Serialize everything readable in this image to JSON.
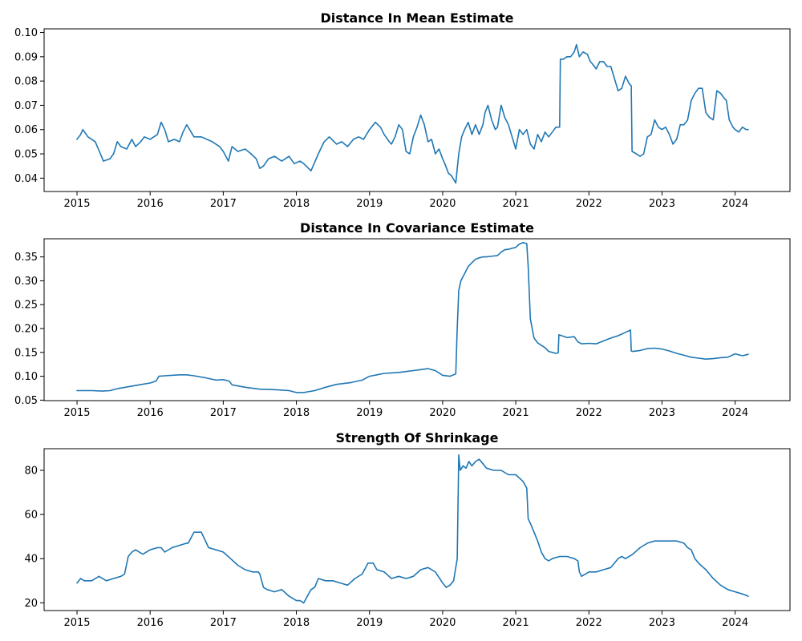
{
  "figure": {
    "background": "#ffffff"
  },
  "chart_data": [
    {
      "type": "line",
      "title": "Distance In Mean Estimate",
      "xlabel": "",
      "ylabel": "",
      "xlim": [
        2014.55,
        2024.75
      ],
      "ylim": [
        0.0345,
        0.1015
      ],
      "x_ticks": [
        2015,
        2016,
        2017,
        2018,
        2019,
        2020,
        2021,
        2022,
        2023,
        2024
      ],
      "x_tick_labels": [
        "2015",
        "2016",
        "2017",
        "2018",
        "2019",
        "2020",
        "2021",
        "2022",
        "2023",
        "2024"
      ],
      "y_ticks": [
        0.04,
        0.05,
        0.06,
        0.07,
        0.08,
        0.09,
        0.1
      ],
      "y_tick_labels": [
        "0.04",
        "0.05",
        "0.06",
        "0.07",
        "0.08",
        "0.09",
        "0.10"
      ],
      "grid": false,
      "series": [
        {
          "color": "#1f77b4",
          "x": [
            2015.0,
            2015.05,
            2015.08,
            2015.15,
            2015.25,
            2015.32,
            2015.36,
            2015.45,
            2015.5,
            2015.55,
            2015.6,
            2015.68,
            2015.75,
            2015.8,
            2015.87,
            2015.92,
            2016.0,
            2016.05,
            2016.1,
            2016.15,
            2016.2,
            2016.25,
            2016.33,
            2016.4,
            2016.45,
            2016.5,
            2016.6,
            2016.7,
            2016.85,
            2016.95,
            2017.0,
            2017.07,
            2017.12,
            2017.2,
            2017.3,
            2017.38,
            2017.45,
            2017.5,
            2017.55,
            2017.62,
            2017.7,
            2017.8,
            2017.9,
            2017.97,
            2018.05,
            2018.1,
            2018.2,
            2018.3,
            2018.38,
            2018.45,
            2018.55,
            2018.62,
            2018.7,
            2018.78,
            2018.85,
            2018.92,
            2019.0,
            2019.08,
            2019.15,
            2019.2,
            2019.27,
            2019.3,
            2019.35,
            2019.4,
            2019.45,
            2019.5,
            2019.55,
            2019.6,
            2019.65,
            2019.7,
            2019.75,
            2019.8,
            2019.85,
            2019.9,
            2019.95,
            2020.0,
            2020.03,
            2020.08,
            2020.12,
            2020.16,
            2020.18,
            2020.22,
            2020.26,
            2020.3,
            2020.35,
            2020.4,
            2020.45,
            2020.5,
            2020.55,
            2020.58,
            2020.62,
            2020.67,
            2020.72,
            2020.75,
            2020.8,
            2020.85,
            2020.9,
            2020.95,
            2021.0,
            2021.05,
            2021.1,
            2021.15,
            2021.2,
            2021.25,
            2021.3,
            2021.35,
            2021.4,
            2021.45,
            2021.5,
            2021.55,
            2021.6,
            2021.61,
            2021.65,
            2021.7,
            2021.75,
            2021.8,
            2021.83,
            2021.87,
            2021.92,
            2021.98,
            2022.02,
            2022.05,
            2022.1,
            2022.15,
            2022.2,
            2022.25,
            2022.3,
            2022.35,
            2022.4,
            2022.45,
            2022.5,
            2022.55,
            2022.58,
            2022.59,
            2022.65,
            2022.7,
            2022.75,
            2022.8,
            2022.85,
            2022.9,
            2022.95,
            2023.0,
            2023.05,
            2023.1,
            2023.15,
            2023.2,
            2023.25,
            2023.3,
            2023.35,
            2023.4,
            2023.45,
            2023.5,
            2023.55,
            2023.6,
            2023.65,
            2023.7,
            2023.75,
            2023.8,
            2023.85,
            2023.88,
            2023.92,
            2023.97,
            2024.0,
            2024.05,
            2024.1,
            2024.15,
            2024.18
          ],
          "y": [
            0.056,
            0.058,
            0.06,
            0.057,
            0.055,
            0.05,
            0.047,
            0.048,
            0.05,
            0.055,
            0.053,
            0.052,
            0.056,
            0.053,
            0.055,
            0.057,
            0.056,
            0.057,
            0.058,
            0.063,
            0.06,
            0.055,
            0.056,
            0.055,
            0.059,
            0.062,
            0.057,
            0.057,
            0.055,
            0.053,
            0.051,
            0.047,
            0.053,
            0.051,
            0.052,
            0.05,
            0.048,
            0.044,
            0.045,
            0.048,
            0.049,
            0.047,
            0.049,
            0.046,
            0.047,
            0.046,
            0.043,
            0.05,
            0.055,
            0.057,
            0.054,
            0.055,
            0.053,
            0.056,
            0.057,
            0.056,
            0.06,
            0.063,
            0.061,
            0.058,
            0.055,
            0.054,
            0.057,
            0.062,
            0.06,
            0.051,
            0.05,
            0.057,
            0.061,
            0.066,
            0.062,
            0.055,
            0.056,
            0.05,
            0.052,
            0.048,
            0.046,
            0.042,
            0.041,
            0.039,
            0.038,
            0.05,
            0.057,
            0.06,
            0.063,
            0.058,
            0.062,
            0.058,
            0.062,
            0.067,
            0.07,
            0.064,
            0.06,
            0.061,
            0.07,
            0.065,
            0.062,
            0.057,
            0.052,
            0.06,
            0.058,
            0.06,
            0.054,
            0.052,
            0.058,
            0.055,
            0.059,
            0.057,
            0.059,
            0.061,
            0.061,
            0.089,
            0.089,
            0.09,
            0.09,
            0.092,
            0.095,
            0.09,
            0.092,
            0.091,
            0.088,
            0.087,
            0.085,
            0.088,
            0.088,
            0.086,
            0.086,
            0.081,
            0.076,
            0.077,
            0.082,
            0.079,
            0.078,
            0.051,
            0.05,
            0.049,
            0.05,
            0.057,
            0.058,
            0.064,
            0.061,
            0.06,
            0.061,
            0.058,
            0.054,
            0.056,
            0.062,
            0.062,
            0.064,
            0.072,
            0.075,
            0.077,
            0.077,
            0.067,
            0.065,
            0.064,
            0.076,
            0.075,
            0.073,
            0.072,
            0.064,
            0.061,
            0.06,
            0.059,
            0.061,
            0.06,
            0.06
          ]
        }
      ]
    },
    {
      "type": "line",
      "title": "Distance In Covariance Estimate",
      "xlabel": "",
      "ylabel": "",
      "xlim": [
        2014.55,
        2024.75
      ],
      "ylim": [
        0.049,
        0.388
      ],
      "x_ticks": [
        2015,
        2016,
        2017,
        2018,
        2019,
        2020,
        2021,
        2022,
        2023,
        2024
      ],
      "x_tick_labels": [
        "2015",
        "2016",
        "2017",
        "2018",
        "2019",
        "2020",
        "2021",
        "2022",
        "2023",
        "2024"
      ],
      "y_ticks": [
        0.05,
        0.1,
        0.15,
        0.2,
        0.25,
        0.3,
        0.35
      ],
      "y_tick_labels": [
        "0.05",
        "0.10",
        "0.15",
        "0.20",
        "0.25",
        "0.30",
        "0.35"
      ],
      "grid": false,
      "series": [
        {
          "color": "#1f77b4",
          "x": [
            2015.0,
            2015.2,
            2015.35,
            2015.45,
            2015.55,
            2015.7,
            2015.85,
            2016.0,
            2016.08,
            2016.12,
            2016.2,
            2016.4,
            2016.5,
            2016.6,
            2016.75,
            2016.9,
            2017.0,
            2017.08,
            2017.12,
            2017.3,
            2017.5,
            2017.7,
            2017.9,
            2018.0,
            2018.1,
            2018.25,
            2018.4,
            2018.55,
            2018.75,
            2018.9,
            2019.0,
            2019.1,
            2019.2,
            2019.3,
            2019.4,
            2019.5,
            2019.6,
            2019.7,
            2019.8,
            2019.9,
            2020.0,
            2020.1,
            2020.18,
            2020.2,
            2020.22,
            2020.25,
            2020.3,
            2020.35,
            2020.4,
            2020.45,
            2020.5,
            2020.55,
            2020.6,
            2020.65,
            2020.7,
            2020.75,
            2020.8,
            2020.85,
            2020.9,
            2021.0,
            2021.05,
            2021.1,
            2021.15,
            2021.17,
            2021.2,
            2021.25,
            2021.3,
            2021.35,
            2021.4,
            2021.45,
            2021.5,
            2021.55,
            2021.58,
            2021.59,
            2021.7,
            2021.8,
            2021.85,
            2021.9,
            2022.0,
            2022.1,
            2022.2,
            2022.3,
            2022.4,
            2022.5,
            2022.57,
            2022.58,
            2022.6,
            2022.7,
            2022.8,
            2022.9,
            2023.0,
            2023.1,
            2023.2,
            2023.3,
            2023.4,
            2023.5,
            2023.6,
            2023.7,
            2023.8,
            2023.9,
            2024.0,
            2024.1,
            2024.18
          ],
          "y": [
            0.07,
            0.07,
            0.069,
            0.07,
            0.074,
            0.078,
            0.082,
            0.086,
            0.09,
            0.1,
            0.101,
            0.103,
            0.103,
            0.101,
            0.097,
            0.092,
            0.093,
            0.09,
            0.082,
            0.077,
            0.073,
            0.072,
            0.07,
            0.066,
            0.066,
            0.07,
            0.077,
            0.083,
            0.087,
            0.092,
            0.1,
            0.103,
            0.106,
            0.107,
            0.108,
            0.11,
            0.112,
            0.114,
            0.116,
            0.112,
            0.102,
            0.1,
            0.105,
            0.2,
            0.28,
            0.3,
            0.315,
            0.33,
            0.338,
            0.345,
            0.348,
            0.35,
            0.35,
            0.351,
            0.352,
            0.353,
            0.36,
            0.365,
            0.366,
            0.37,
            0.377,
            0.38,
            0.378,
            0.33,
            0.22,
            0.18,
            0.17,
            0.165,
            0.16,
            0.152,
            0.15,
            0.148,
            0.149,
            0.187,
            0.181,
            0.183,
            0.172,
            0.168,
            0.169,
            0.168,
            0.174,
            0.18,
            0.185,
            0.192,
            0.197,
            0.153,
            0.152,
            0.154,
            0.158,
            0.159,
            0.157,
            0.153,
            0.148,
            0.144,
            0.14,
            0.138,
            0.136,
            0.137,
            0.139,
            0.14,
            0.147,
            0.143,
            0.146
          ]
        }
      ]
    },
    {
      "type": "line",
      "title": "Strength Of Shrinkage",
      "xlabel": "",
      "ylabel": "",
      "xlim": [
        2014.55,
        2024.75
      ],
      "ylim": [
        16.5,
        89.8
      ],
      "x_ticks": [
        2015,
        2016,
        2017,
        2018,
        2019,
        2020,
        2021,
        2022,
        2023,
        2024
      ],
      "x_tick_labels": [
        "2015",
        "2016",
        "2017",
        "2018",
        "2019",
        "2020",
        "2021",
        "2022",
        "2023",
        "2024"
      ],
      "y_ticks": [
        20,
        40,
        60,
        80
      ],
      "y_tick_labels": [
        "20",
        "40",
        "60",
        "80"
      ],
      "grid": false,
      "series": [
        {
          "color": "#1f77b4",
          "x": [
            2015.0,
            2015.05,
            2015.1,
            2015.2,
            2015.3,
            2015.4,
            2015.5,
            2015.6,
            2015.65,
            2015.7,
            2015.75,
            2015.8,
            2015.9,
            2016.0,
            2016.1,
            2016.15,
            2016.2,
            2016.3,
            2016.4,
            2016.5,
            2016.52,
            2016.6,
            2016.65,
            2016.7,
            2016.8,
            2016.9,
            2017.0,
            2017.1,
            2017.2,
            2017.3,
            2017.4,
            2017.48,
            2017.5,
            2017.55,
            2017.6,
            2017.7,
            2017.8,
            2017.9,
            2018.0,
            2018.05,
            2018.1,
            2018.2,
            2018.25,
            2018.3,
            2018.4,
            2018.5,
            2018.6,
            2018.7,
            2018.8,
            2018.9,
            2018.98,
            2019.05,
            2019.1,
            2019.2,
            2019.3,
            2019.4,
            2019.5,
            2019.6,
            2019.7,
            2019.8,
            2019.9,
            2020.0,
            2020.05,
            2020.1,
            2020.15,
            2020.2,
            2020.22,
            2020.24,
            2020.28,
            2020.32,
            2020.36,
            2020.4,
            2020.45,
            2020.5,
            2020.55,
            2020.6,
            2020.7,
            2020.8,
            2020.9,
            2021.0,
            2021.1,
            2021.15,
            2021.17,
            2021.2,
            2021.25,
            2021.3,
            2021.35,
            2021.4,
            2021.45,
            2021.5,
            2021.6,
            2021.7,
            2021.8,
            2021.85,
            2021.87,
            2021.9,
            2022.0,
            2022.1,
            2022.2,
            2022.3,
            2022.4,
            2022.45,
            2022.5,
            2022.6,
            2022.7,
            2022.8,
            2022.9,
            2023.0,
            2023.1,
            2023.2,
            2023.3,
            2023.35,
            2023.4,
            2023.45,
            2023.5,
            2023.6,
            2023.7,
            2023.8,
            2023.9,
            2024.0,
            2024.1,
            2024.18
          ],
          "y": [
            29,
            31,
            30,
            30,
            32,
            30,
            31,
            32,
            33,
            41,
            43,
            44,
            42,
            44,
            45,
            45,
            43,
            45,
            46,
            47,
            47,
            52,
            52,
            52,
            45,
            44,
            43,
            40,
            37,
            35,
            34,
            34,
            33,
            27,
            26,
            25,
            26,
            23,
            21,
            21,
            20,
            26,
            27,
            31,
            30,
            30,
            29,
            28,
            31,
            33,
            38,
            38,
            35,
            34,
            31,
            32,
            31,
            32,
            35,
            36,
            34,
            29,
            27,
            28,
            30,
            40,
            87,
            80,
            82,
            81,
            84,
            82,
            84,
            85,
            83,
            81,
            80,
            80,
            78,
            78,
            75,
            72,
            58,
            56,
            52,
            48,
            43,
            40,
            39,
            40,
            41,
            41,
            40,
            39,
            34,
            32,
            34,
            34,
            35,
            36,
            40,
            41,
            40,
            42,
            45,
            47,
            48,
            48,
            48,
            48,
            47,
            45,
            44,
            40,
            38,
            35,
            31,
            28,
            26,
            25,
            24,
            23
          ]
        }
      ]
    }
  ]
}
